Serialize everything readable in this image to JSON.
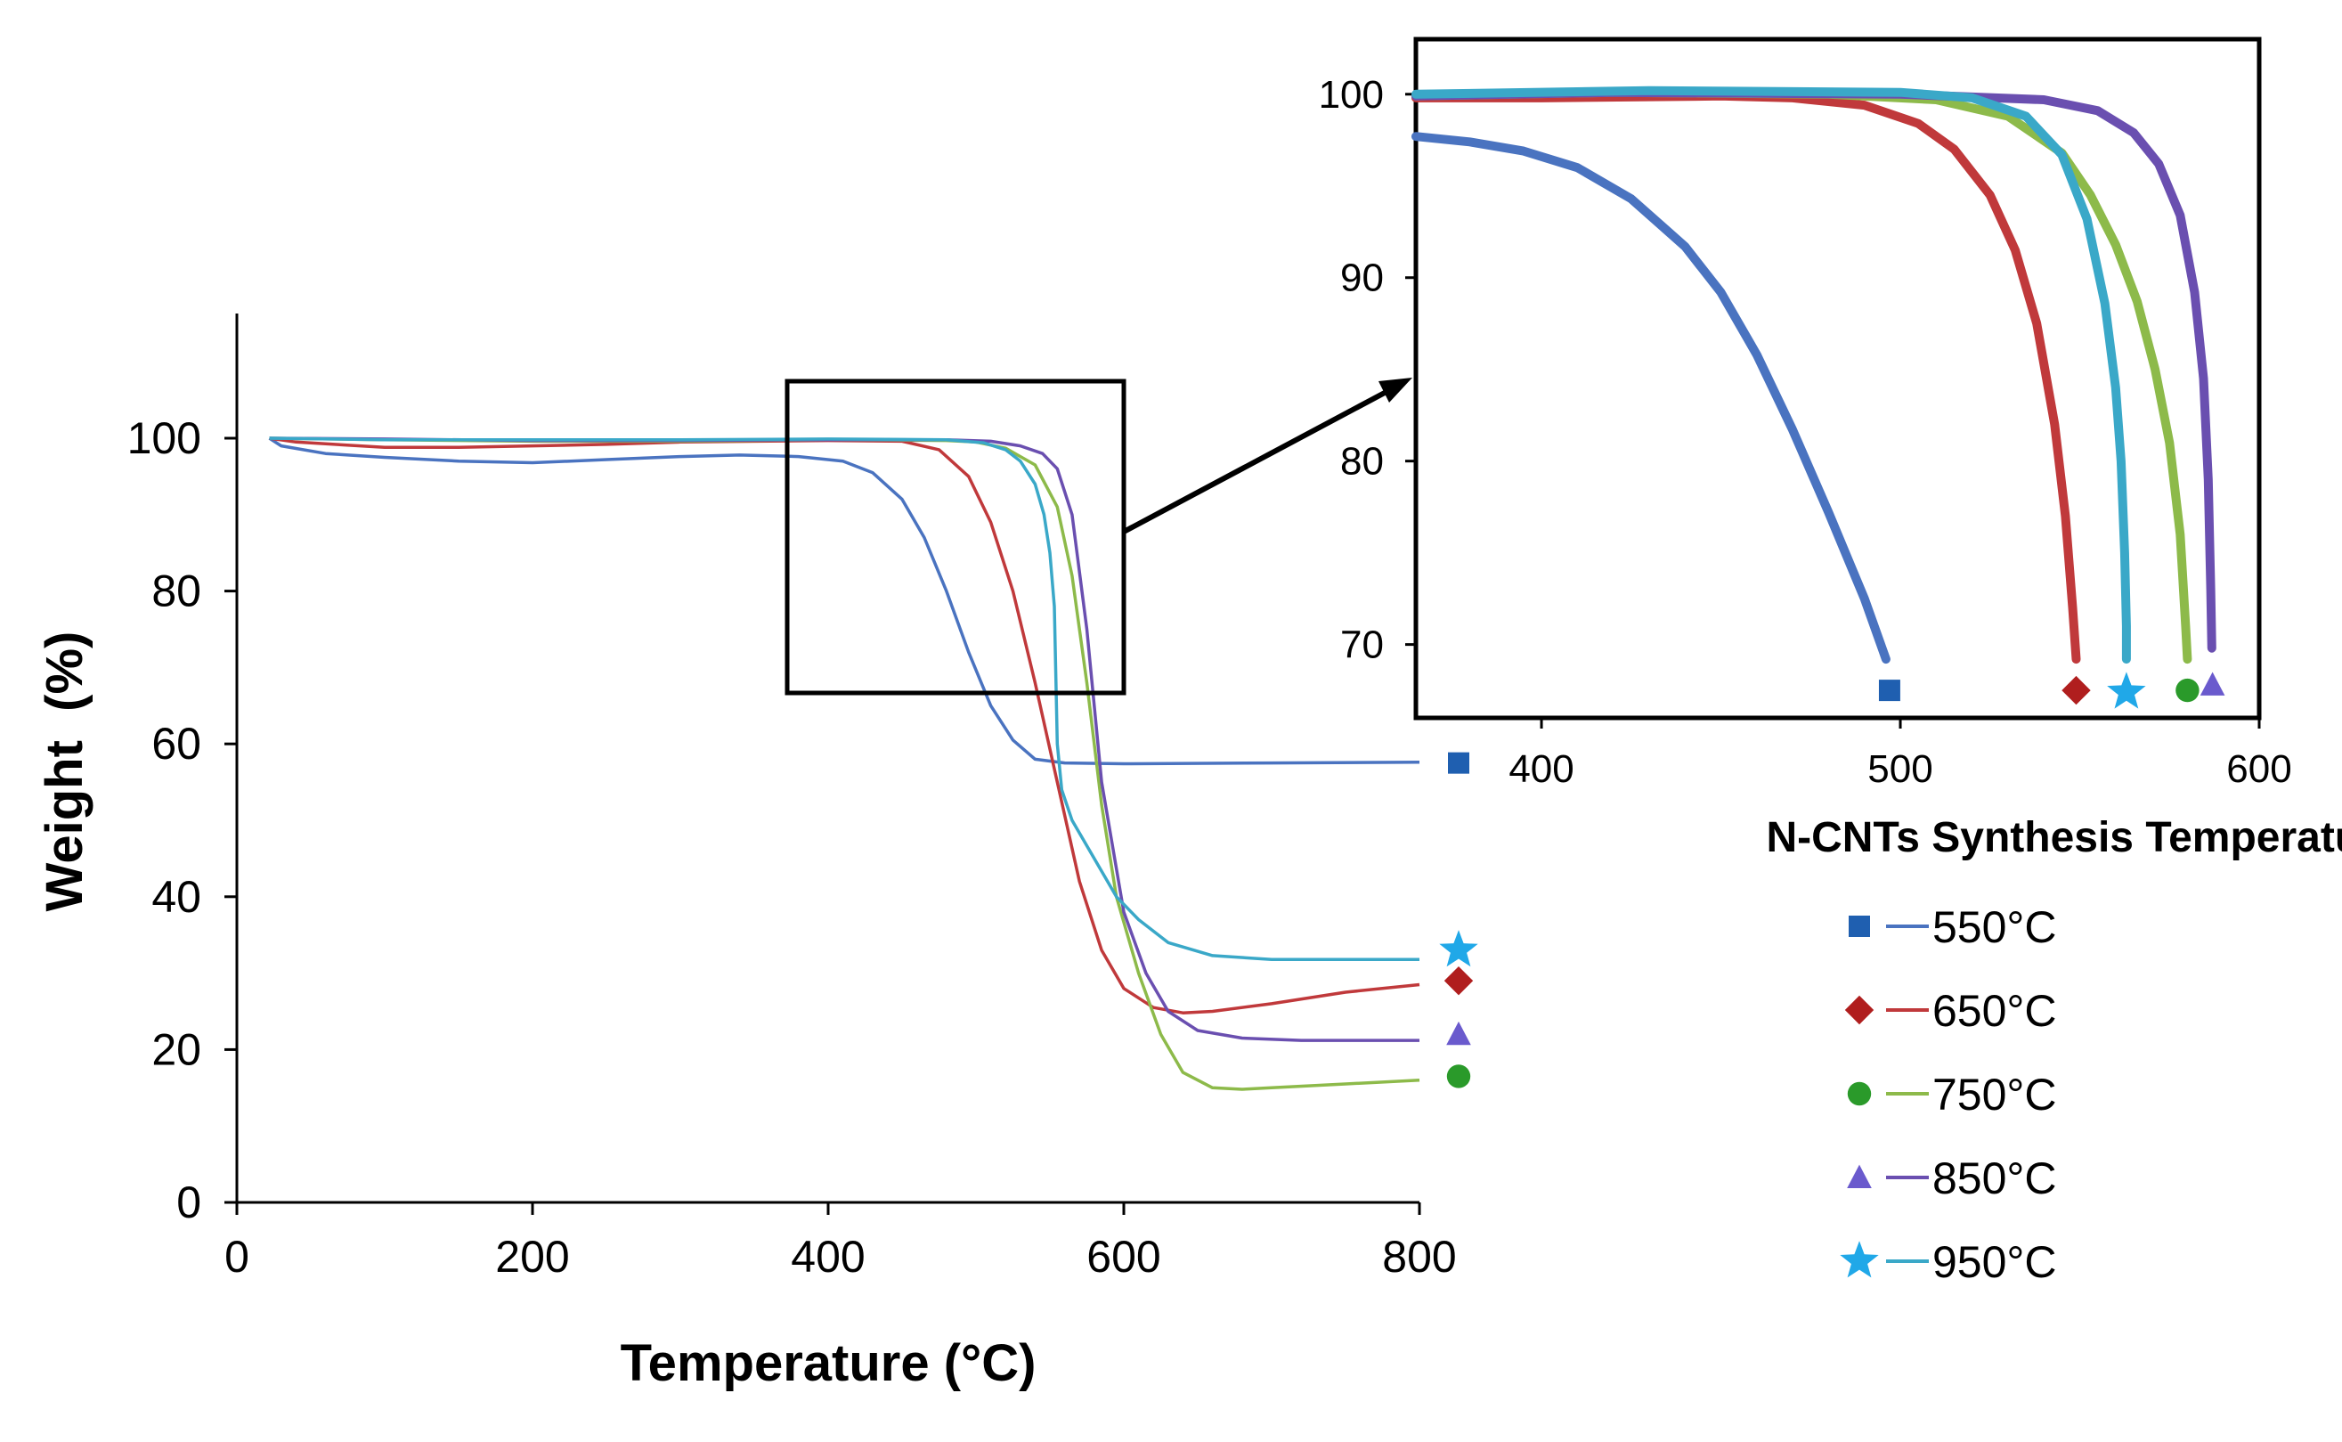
{
  "chart_data": [
    {
      "id": "main",
      "type": "line",
      "xlabel": "Temperature (°C)",
      "ylabel": "Weight  (%)",
      "xlim": [
        0,
        800
      ],
      "ylim": [
        0,
        115
      ],
      "xticks": [
        0,
        200,
        400,
        600,
        800
      ],
      "yticks": [
        0,
        20,
        40,
        60,
        80,
        100
      ],
      "grid": false,
      "series": [
        {
          "name": "550°C",
          "color": "#4a73c0",
          "marker": "square",
          "marker_color": "#1f5fb0",
          "end_marker_y": 57.5,
          "points": [
            [
              22,
              100
            ],
            [
              30,
              99
            ],
            [
              60,
              98
            ],
            [
              100,
              97.5
            ],
            [
              150,
              97
            ],
            [
              200,
              96.8
            ],
            [
              250,
              97.2
            ],
            [
              300,
              97.6
            ],
            [
              340,
              97.8
            ],
            [
              380,
              97.6
            ],
            [
              410,
              97
            ],
            [
              430,
              95.5
            ],
            [
              450,
              92
            ],
            [
              465,
              87
            ],
            [
              480,
              80
            ],
            [
              495,
              72
            ],
            [
              510,
              65
            ],
            [
              525,
              60.5
            ],
            [
              540,
              58
            ],
            [
              560,
              57.5
            ],
            [
              600,
              57.4
            ],
            [
              700,
              57.5
            ],
            [
              800,
              57.6
            ]
          ]
        },
        {
          "name": "650°C",
          "color": "#c0393b",
          "marker": "diamond",
          "marker_color": "#b01e1e",
          "end_marker_y": 29,
          "points": [
            [
              22,
              100
            ],
            [
              40,
              99.5
            ],
            [
              100,
              98.8
            ],
            [
              150,
              98.8
            ],
            [
              200,
              99
            ],
            [
              250,
              99.2
            ],
            [
              300,
              99.5
            ],
            [
              400,
              99.7
            ],
            [
              450,
              99.6
            ],
            [
              475,
              98.5
            ],
            [
              495,
              95
            ],
            [
              510,
              89
            ],
            [
              525,
              80
            ],
            [
              540,
              68
            ],
            [
              555,
              55
            ],
            [
              570,
              42
            ],
            [
              585,
              33
            ],
            [
              600,
              28
            ],
            [
              620,
              25.5
            ],
            [
              640,
              24.8
            ],
            [
              660,
              25
            ],
            [
              700,
              26
            ],
            [
              750,
              27.5
            ],
            [
              800,
              28.5
            ]
          ]
        },
        {
          "name": "750°C",
          "color": "#8dba4a",
          "marker": "circle",
          "marker_color": "#2a9a2a",
          "end_marker_y": 16.5,
          "points": [
            [
              22,
              100
            ],
            [
              100,
              99.8
            ],
            [
              200,
              99.6
            ],
            [
              300,
              99.6
            ],
            [
              400,
              99.8
            ],
            [
              480,
              99.7
            ],
            [
              500,
              99.5
            ],
            [
              520,
              98.7
            ],
            [
              540,
              96.5
            ],
            [
              555,
              91
            ],
            [
              565,
              82
            ],
            [
              575,
              68
            ],
            [
              585,
              52
            ],
            [
              595,
              40
            ],
            [
              610,
              30
            ],
            [
              625,
              22
            ],
            [
              640,
              17
            ],
            [
              660,
              15
            ],
            [
              680,
              14.8
            ],
            [
              700,
              15
            ],
            [
              750,
              15.5
            ],
            [
              800,
              16
            ]
          ]
        },
        {
          "name": "850°C",
          "color": "#6a4fb0",
          "marker": "triangle",
          "marker_color": "#6a5acd",
          "end_marker_y": 22,
          "points": [
            [
              22,
              100
            ],
            [
              100,
              99.9
            ],
            [
              200,
              99.7
            ],
            [
              300,
              99.7
            ],
            [
              400,
              99.8
            ],
            [
              480,
              99.8
            ],
            [
              510,
              99.6
            ],
            [
              530,
              99
            ],
            [
              545,
              98
            ],
            [
              555,
              96
            ],
            [
              565,
              90
            ],
            [
              575,
              75
            ],
            [
              585,
              55
            ],
            [
              600,
              38
            ],
            [
              615,
              30
            ],
            [
              630,
              25
            ],
            [
              650,
              22.5
            ],
            [
              680,
              21.5
            ],
            [
              720,
              21.2
            ],
            [
              800,
              21.2
            ]
          ]
        },
        {
          "name": "950°C",
          "color": "#3aa8c8",
          "marker": "star",
          "marker_color": "#20a8e8",
          "end_marker_y": 33,
          "points": [
            [
              22,
              100
            ],
            [
              100,
              99.8
            ],
            [
              200,
              99.8
            ],
            [
              300,
              99.8
            ],
            [
              400,
              99.9
            ],
            [
              480,
              99.8
            ],
            [
              505,
              99.4
            ],
            [
              520,
              98.5
            ],
            [
              530,
              97
            ],
            [
              540,
              94
            ],
            [
              546,
              90
            ],
            [
              550,
              85
            ],
            [
              553,
              78
            ],
            [
              555,
              60
            ],
            [
              558,
              54
            ],
            [
              565,
              50
            ],
            [
              580,
              45
            ],
            [
              595,
              40
            ],
            [
              610,
              37
            ],
            [
              630,
              34
            ],
            [
              660,
              32.3
            ],
            [
              700,
              31.8
            ],
            [
              800,
              31.8
            ]
          ]
        }
      ]
    },
    {
      "id": "inset",
      "type": "scatter",
      "xlabel": "N-CNTs Synthesis Temperature",
      "ylabel": "",
      "xlim": [
        365,
        600
      ],
      "ylim": [
        66,
        103
      ],
      "xticks": [
        400,
        500,
        600
      ],
      "yticks": [
        70,
        80,
        90,
        100
      ],
      "grid": false,
      "series": [
        {
          "name": "550°C",
          "color": "#4a73c0",
          "marker": "square",
          "marker_color": "#1f5fb0",
          "end": [
            497,
            67.5
          ],
          "points": [
            [
              365,
              97.7
            ],
            [
              380,
              97.4
            ],
            [
              395,
              96.9
            ],
            [
              410,
              96
            ],
            [
              425,
              94.3
            ],
            [
              440,
              91.7
            ],
            [
              450,
              89.2
            ],
            [
              460,
              85.8
            ],
            [
              470,
              81.7
            ],
            [
              480,
              77.2
            ],
            [
              490,
              72.5
            ],
            [
              496,
              69.2
            ]
          ]
        },
        {
          "name": "650°C",
          "color": "#c0393b",
          "marker": "diamond",
          "marker_color": "#b01e1e",
          "end": [
            549,
            67.5
          ],
          "points": [
            [
              365,
              99.8
            ],
            [
              400,
              99.8
            ],
            [
              450,
              99.9
            ],
            [
              470,
              99.8
            ],
            [
              490,
              99.4
            ],
            [
              505,
              98.4
            ],
            [
              515,
              97
            ],
            [
              525,
              94.5
            ],
            [
              532,
              91.5
            ],
            [
              538,
              87.5
            ],
            [
              543,
              82
            ],
            [
              546,
              77
            ],
            [
              548,
              72
            ],
            [
              549,
              69.2
            ]
          ]
        },
        {
          "name": "750°C",
          "color": "#8dba4a",
          "marker": "circle",
          "marker_color": "#2a9a2a",
          "end": [
            580,
            67.5
          ],
          "points": [
            [
              365,
              99.9
            ],
            [
              420,
              100.1
            ],
            [
              480,
              100
            ],
            [
              510,
              99.7
            ],
            [
              530,
              98.8
            ],
            [
              545,
              96.8
            ],
            [
              553,
              94.5
            ],
            [
              560,
              91.8
            ],
            [
              566,
              88.7
            ],
            [
              571,
              85
            ],
            [
              575,
              81
            ],
            [
              578,
              76
            ],
            [
              579.5,
              71
            ],
            [
              580,
              69.2
            ]
          ]
        },
        {
          "name": "850°C",
          "color": "#6a4fb0",
          "marker": "triangle",
          "marker_color": "#6a5acd",
          "end": [
            587,
            67.8
          ],
          "points": [
            [
              365,
              99.9
            ],
            [
              420,
              100.1
            ],
            [
              500,
              100
            ],
            [
              540,
              99.7
            ],
            [
              555,
              99.1
            ],
            [
              565,
              97.9
            ],
            [
              572,
              96.2
            ],
            [
              578,
              93.4
            ],
            [
              582,
              89.2
            ],
            [
              584.5,
              84.5
            ],
            [
              585.8,
              79
            ],
            [
              586.5,
              73
            ],
            [
              586.8,
              69.8
            ]
          ]
        },
        {
          "name": "950°C",
          "color": "#3aa8c8",
          "marker": "star",
          "marker_color": "#20a8e8",
          "end": [
            563,
            67.4
          ],
          "points": [
            [
              365,
              100
            ],
            [
              430,
              100.2
            ],
            [
              500,
              100.1
            ],
            [
              520,
              99.8
            ],
            [
              535,
              98.8
            ],
            [
              545,
              96.7
            ],
            [
              552,
              93.2
            ],
            [
              557,
              88.6
            ],
            [
              560,
              84
            ],
            [
              561.5,
              80
            ],
            [
              562.5,
              75
            ],
            [
              563,
              71
            ],
            [
              563,
              69.2
            ]
          ]
        }
      ]
    }
  ],
  "legend": {
    "placement": "bottom-right",
    "items": [
      {
        "label": "550°C",
        "color": "#4a73c0",
        "marker": "square",
        "marker_color": "#1f5fb0"
      },
      {
        "label": "650°C",
        "color": "#c0393b",
        "marker": "diamond",
        "marker_color": "#b01e1e"
      },
      {
        "label": "750°C",
        "color": "#8dba4a",
        "marker": "circle",
        "marker_color": "#2a9a2a"
      },
      {
        "label": "850°C",
        "color": "#6a4fb0",
        "marker": "triangle",
        "marker_color": "#6a5acd"
      },
      {
        "label": "950°C",
        "color": "#3aa8c8",
        "marker": "star",
        "marker_color": "#20a8e8"
      }
    ]
  }
}
